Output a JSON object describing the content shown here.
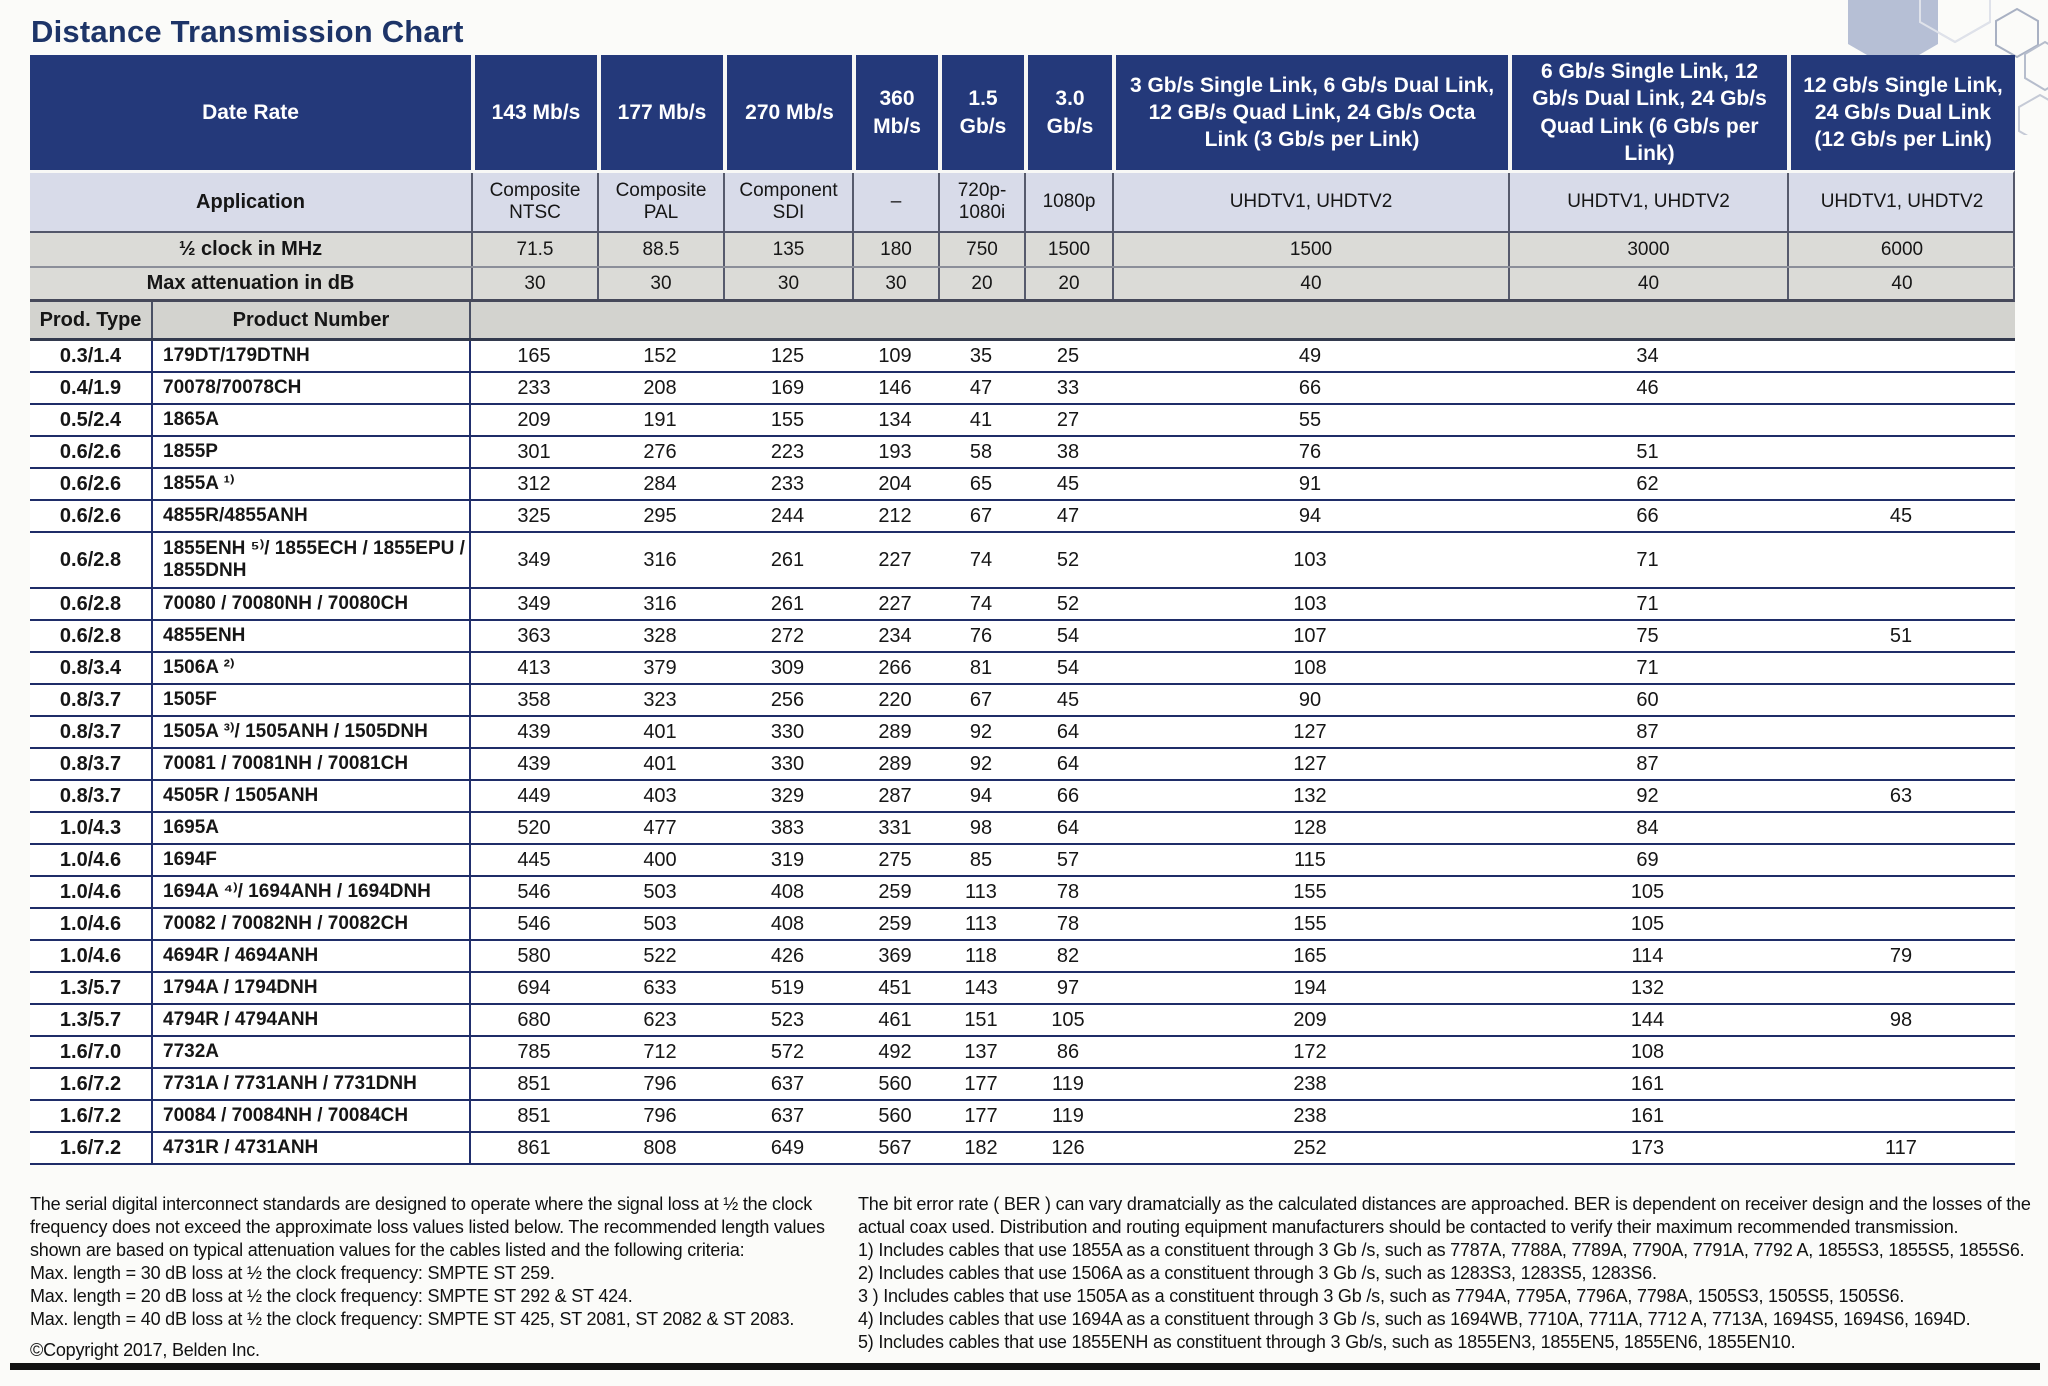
{
  "page": {
    "title": "Distance Transmission Chart",
    "copyright": "©Copyright 2017, Belden Inc."
  },
  "table": {
    "header": {
      "date_rate_label": "Date Rate",
      "application_label": "Application",
      "half_clock_label": "½ clock in MHz",
      "max_atten_label": "Max attenuation in dB",
      "prod_type_label": "Prod. Type",
      "product_number_label": "Product Number",
      "data_rates": [
        "143 Mb/s",
        "177 Mb/s",
        "270 Mb/s",
        "360 Mb/s",
        "1.5 Gb/s",
        "3.0 Gb/s",
        "3 Gb/s Single Link, 6 Gb/s Dual Link, 12 GB/s Quad Link, 24 Gb/s Octa Link (3 Gb/s per Link)",
        "6 Gb/s Single Link, 12 Gb/s Dual Link, 24 Gb/s Quad Link (6 Gb/s per Link)",
        "12 Gb/s Single Link, 24 Gb/s Dual Link (12 Gb/s per Link)"
      ],
      "applications": [
        "Composite NTSC",
        "Composite PAL",
        "Component SDI",
        "–",
        "720p-1080i",
        "1080p",
        "UHDTV1, UHDTV2",
        "UHDTV1, UHDTV2",
        "UHDTV1, UHDTV2"
      ],
      "half_clock": [
        "71.5",
        "88.5",
        "135",
        "180",
        "750",
        "1500",
        "1500",
        "3000",
        "6000"
      ],
      "max_attenuation": [
        "30",
        "30",
        "30",
        "30",
        "20",
        "20",
        "40",
        "40",
        "40"
      ]
    },
    "rows": [
      {
        "type": "0.3/1.4",
        "product": "179DT/179DTNH",
        "values": [
          "165",
          "152",
          "125",
          "109",
          "35",
          "25",
          "49",
          "34",
          ""
        ]
      },
      {
        "type": "0.4/1.9",
        "product": "70078/70078CH",
        "values": [
          "233",
          "208",
          "169",
          "146",
          "47",
          "33",
          "66",
          "46",
          ""
        ]
      },
      {
        "type": "0.5/2.4",
        "product": "1865A",
        "values": [
          "209",
          "191",
          "155",
          "134",
          "41",
          "27",
          "55",
          "",
          ""
        ]
      },
      {
        "type": "0.6/2.6",
        "product": "1855P",
        "values": [
          "301",
          "276",
          "223",
          "193",
          "58",
          "38",
          "76",
          "51",
          ""
        ]
      },
      {
        "type": "0.6/2.6",
        "product": "1855A ¹⁾",
        "values": [
          "312",
          "284",
          "233",
          "204",
          "65",
          "45",
          "91",
          "62",
          ""
        ]
      },
      {
        "type": "0.6/2.6",
        "product": "4855R/4855ANH",
        "values": [
          "325",
          "295",
          "244",
          "212",
          "67",
          "47",
          "94",
          "66",
          "45"
        ]
      },
      {
        "type": "0.6/2.8",
        "product": "1855ENH ⁵⁾/ 1855ECH / 1855EPU / 1855DNH",
        "values": [
          "349",
          "316",
          "261",
          "227",
          "74",
          "52",
          "103",
          "71",
          ""
        ]
      },
      {
        "type": "0.6/2.8",
        "product": "70080 / 70080NH / 70080CH",
        "values": [
          "349",
          "316",
          "261",
          "227",
          "74",
          "52",
          "103",
          "71",
          ""
        ]
      },
      {
        "type": "0.6/2.8",
        "product": "4855ENH",
        "values": [
          "363",
          "328",
          "272",
          "234",
          "76",
          "54",
          "107",
          "75",
          "51"
        ]
      },
      {
        "type": "0.8/3.4",
        "product": "1506A ²⁾",
        "values": [
          "413",
          "379",
          "309",
          "266",
          "81",
          "54",
          "108",
          "71",
          ""
        ]
      },
      {
        "type": "0.8/3.7",
        "product": "1505F",
        "values": [
          "358",
          "323",
          "256",
          "220",
          "67",
          "45",
          "90",
          "60",
          ""
        ]
      },
      {
        "type": "0.8/3.7",
        "product": "1505A ³⁾/ 1505ANH / 1505DNH",
        "values": [
          "439",
          "401",
          "330",
          "289",
          "92",
          "64",
          "127",
          "87",
          ""
        ]
      },
      {
        "type": "0.8/3.7",
        "product": "70081 / 70081NH / 70081CH",
        "values": [
          "439",
          "401",
          "330",
          "289",
          "92",
          "64",
          "127",
          "87",
          ""
        ]
      },
      {
        "type": "0.8/3.7",
        "product": "4505R / 1505ANH",
        "values": [
          "449",
          "403",
          "329",
          "287",
          "94",
          "66",
          "132",
          "92",
          "63"
        ]
      },
      {
        "type": "1.0/4.3",
        "product": "1695A",
        "values": [
          "520",
          "477",
          "383",
          "331",
          "98",
          "64",
          "128",
          "84",
          ""
        ]
      },
      {
        "type": "1.0/4.6",
        "product": "1694F",
        "values": [
          "445",
          "400",
          "319",
          "275",
          "85",
          "57",
          "115",
          "69",
          ""
        ]
      },
      {
        "type": "1.0/4.6",
        "product": "1694A ⁴⁾/ 1694ANH / 1694DNH",
        "values": [
          "546",
          "503",
          "408",
          "259",
          "113",
          "78",
          "155",
          "105",
          ""
        ]
      },
      {
        "type": "1.0/4.6",
        "product": "70082 / 70082NH / 70082CH",
        "values": [
          "546",
          "503",
          "408",
          "259",
          "113",
          "78",
          "155",
          "105",
          ""
        ]
      },
      {
        "type": "1.0/4.6",
        "product": "4694R / 4694ANH",
        "values": [
          "580",
          "522",
          "426",
          "369",
          "118",
          "82",
          "165",
          "114",
          "79"
        ]
      },
      {
        "type": "1.3/5.7",
        "product": "1794A / 1794DNH",
        "values": [
          "694",
          "633",
          "519",
          "451",
          "143",
          "97",
          "194",
          "132",
          ""
        ]
      },
      {
        "type": "1.3/5.7",
        "product": "4794R / 4794ANH",
        "values": [
          "680",
          "623",
          "523",
          "461",
          "151",
          "105",
          "209",
          "144",
          "98"
        ]
      },
      {
        "type": "1.6/7.0",
        "product": "7732A",
        "values": [
          "785",
          "712",
          "572",
          "492",
          "137",
          "86",
          "172",
          "108",
          ""
        ]
      },
      {
        "type": "1.6/7.2",
        "product": "7731A / 7731ANH / 7731DNH",
        "values": [
          "851",
          "796",
          "637",
          "560",
          "177",
          "119",
          "238",
          "161",
          ""
        ]
      },
      {
        "type": "1.6/7.2",
        "product": "70084 / 70084NH / 70084CH",
        "values": [
          "851",
          "796",
          "637",
          "560",
          "177",
          "119",
          "238",
          "161",
          ""
        ]
      },
      {
        "type": "1.6/7.2",
        "product": "4731R / 4731ANH",
        "values": [
          "861",
          "808",
          "649",
          "567",
          "182",
          "126",
          "252",
          "173",
          "117"
        ]
      }
    ]
  },
  "footnotes": {
    "left": {
      "intro": "The serial digital interconnect standards are designed to operate where the signal loss at ½ the clock frequency does not exceed the approximate loss values listed below. The recommended length values shown are based on typical attenuation values for the cables listed and the following criteria:",
      "lines": [
        "Max. length = 30 dB loss at ½ the clock frequency: SMPTE ST 259.",
        "Max. length = 20 dB loss at ½ the clock frequency: SMPTE ST 292 & ST 424.",
        "Max. length = 40 dB loss at ½ the clock frequency: SMPTE ST 425, ST 2081, ST 2082 & ST 2083."
      ]
    },
    "right": {
      "intro": "The bit error rate ( BER ) can vary dramatcially as the calculated distances are approached. BER is dependent on receiver design and the losses of the actual coax used. Distribution and routing equipment manufacturers should be contacted to verify their maximum recommended transmission.",
      "items": [
        "1) Includes cables that use 1855A as a constituent through 3 Gb /s, such as 7787A, 7788A, 7789A, 7790A, 7791A, 7792 A, 1855S3, 1855S5, 1855S6.",
        "2) Includes cables that use 1506A as a constituent through 3 Gb /s, such as 1283S3, 1283S5, 1283S6.",
        "3 ) Includes cables that use 1505A as a constituent through 3 Gb /s, such as 7794A, 7795A, 7796A, 7798A, 1505S3, 1505S5, 1505S6.",
        "4) Includes cables that use 1694A as a constituent through 3 Gb /s, such as 1694WB, 7710A, 7711A, 7712 A, 7713A, 1694S5, 1694S6, 1694D.",
        "5) Includes cables that use 1855ENH as constituent through 3 Gb/s, such as 1855EN3, 1855EN5, 1855EN6, 1855EN10."
      ]
    }
  },
  "colors": {
    "header_navy": "#24397a",
    "row_line_navy": "#1f2d68",
    "application_row": "#d8dbe9",
    "gray_row": "#dbdbd7",
    "title": "#1d3468"
  }
}
